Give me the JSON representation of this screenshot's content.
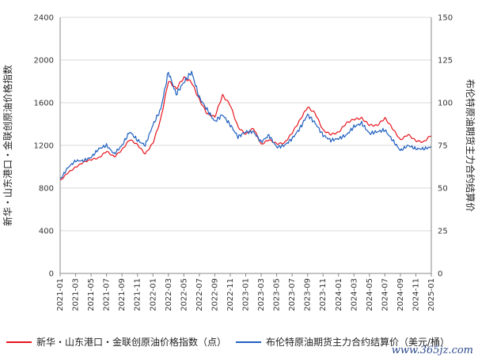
{
  "chart_data": {
    "type": "line",
    "left_axis": {
      "label": "新华・山东港口・金联创原油价格指数",
      "range": [
        0,
        2400
      ],
      "ticks": [
        "0",
        "400",
        "800",
        "1200",
        "1600",
        "2000",
        "2400"
      ]
    },
    "right_axis": {
      "label": "布伦特原油期货主力合约结算价",
      "range": [
        0,
        150
      ],
      "ticks": [
        "0",
        "25",
        "50",
        "75",
        "100",
        "125",
        "150"
      ]
    },
    "x_ticks": [
      "2021-01",
      "2021-03",
      "2021-05",
      "2021-07",
      "2021-09",
      "2021-11",
      "2022-01",
      "2022-03",
      "2022-05",
      "2022-07",
      "2022-09",
      "2022-11",
      "2023-01",
      "2023-03",
      "2023-05",
      "2023-07",
      "2023-09",
      "2023-11",
      "2024-01",
      "2024-03",
      "2024-05",
      "2024-07",
      "2024-09",
      "2024-11",
      "2025-01"
    ],
    "grid": "horizontal",
    "legend_position": "bottom",
    "series": [
      {
        "name": "新华・山东港口・金联创原油价格指数（点）",
        "axis": "left",
        "color": "#e8141c",
        "x": [
          "2021-01",
          "2021-02",
          "2021-03",
          "2021-04",
          "2021-05",
          "2021-06",
          "2021-07",
          "2021-08",
          "2021-09",
          "2021-10",
          "2021-11",
          "2021-12",
          "2022-01",
          "2022-02",
          "2022-03",
          "2022-04",
          "2022-05",
          "2022-06",
          "2022-07",
          "2022-08",
          "2022-09",
          "2022-10",
          "2022-11",
          "2022-12",
          "2023-01",
          "2023-02",
          "2023-03",
          "2023-04",
          "2023-05",
          "2023-06",
          "2023-07",
          "2023-08",
          "2023-09",
          "2023-10",
          "2023-11",
          "2023-12",
          "2024-01",
          "2024-02",
          "2024-03",
          "2024-04",
          "2024-05",
          "2024-06",
          "2024-07",
          "2024-08",
          "2024-09",
          "2024-10",
          "2024-11",
          "2024-12",
          "2025-01"
        ],
        "values": [
          870,
          950,
          1000,
          1040,
          1060,
          1080,
          1150,
          1100,
          1160,
          1250,
          1200,
          1120,
          1230,
          1450,
          1800,
          1720,
          1830,
          1800,
          1640,
          1500,
          1460,
          1660,
          1580,
          1380,
          1310,
          1360,
          1200,
          1250,
          1220,
          1230,
          1320,
          1430,
          1550,
          1500,
          1350,
          1310,
          1320,
          1400,
          1440,
          1460,
          1400,
          1390,
          1450,
          1350,
          1250,
          1310,
          1250,
          1230,
          1290
        ]
      },
      {
        "name": "布伦特原油期货主力合约结算价（美元/桶）",
        "axis": "right",
        "color": "#2060c0",
        "x": [
          "2021-01",
          "2021-02",
          "2021-03",
          "2021-04",
          "2021-05",
          "2021-06",
          "2021-07",
          "2021-08",
          "2021-09",
          "2021-10",
          "2021-11",
          "2021-12",
          "2022-01",
          "2022-02",
          "2022-03",
          "2022-04",
          "2022-05",
          "2022-06",
          "2022-07",
          "2022-08",
          "2022-09",
          "2022-10",
          "2022-11",
          "2022-12",
          "2023-01",
          "2023-02",
          "2023-03",
          "2023-04",
          "2023-05",
          "2023-06",
          "2023-07",
          "2023-08",
          "2023-09",
          "2023-10",
          "2023-11",
          "2023-12",
          "2024-01",
          "2024-02",
          "2024-03",
          "2024-04",
          "2024-05",
          "2024-06",
          "2024-07",
          "2024-08",
          "2024-09",
          "2024-10",
          "2024-11",
          "2024-12",
          "2025-01"
        ],
        "values": [
          55,
          62,
          66,
          66,
          68,
          73,
          75,
          70,
          75,
          83,
          78,
          75,
          87,
          96,
          118,
          105,
          112,
          118,
          103,
          96,
          89,
          93,
          87,
          80,
          83,
          83,
          77,
          81,
          74,
          75,
          79,
          85,
          93,
          88,
          81,
          78,
          79,
          81,
          86,
          88,
          82,
          83,
          84,
          78,
          72,
          75,
          73,
          73,
          74
        ]
      }
    ]
  },
  "watermark": "www.365jz.com"
}
